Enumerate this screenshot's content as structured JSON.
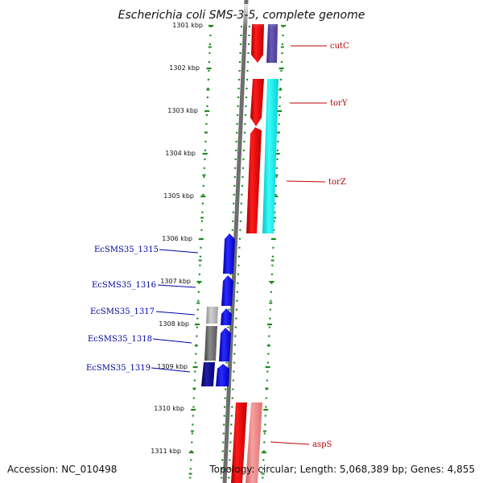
{
  "title": "Escherichia coli SMS-3-5, complete genome",
  "footer": {
    "accession": "Accession: NC_010498",
    "topology": "Topology: circular; Length: 5,068,389 bp; Genes: 4,855"
  },
  "ruler": {
    "ticks": [
      "1301 kbp",
      "1302 kbp",
      "1303 kbp",
      "1304 kbp",
      "1305 kbp",
      "1306 kbp",
      "1307 kbp",
      "1308 kbp",
      "1309 kbp",
      "1310 kbp",
      "1311 kbp"
    ]
  },
  "labels": {
    "forward": [
      "cutC",
      "torY",
      "torZ",
      "aspS"
    ],
    "reverse": [
      "EcSMS35_1315",
      "EcSMS35_1316",
      "EcSMS35_1317",
      "EcSMS35_1318",
      "EcSMS35_1319"
    ]
  },
  "colors": {
    "forward_gene": "#e00000",
    "reverse_gene": "#0000ee",
    "similarity_cyan": "#00e8e8",
    "similarity_purple": "#5a4aa8",
    "similarity_pink": "#f08080",
    "dots": "#1a8a1a",
    "backbone": "#808080"
  }
}
